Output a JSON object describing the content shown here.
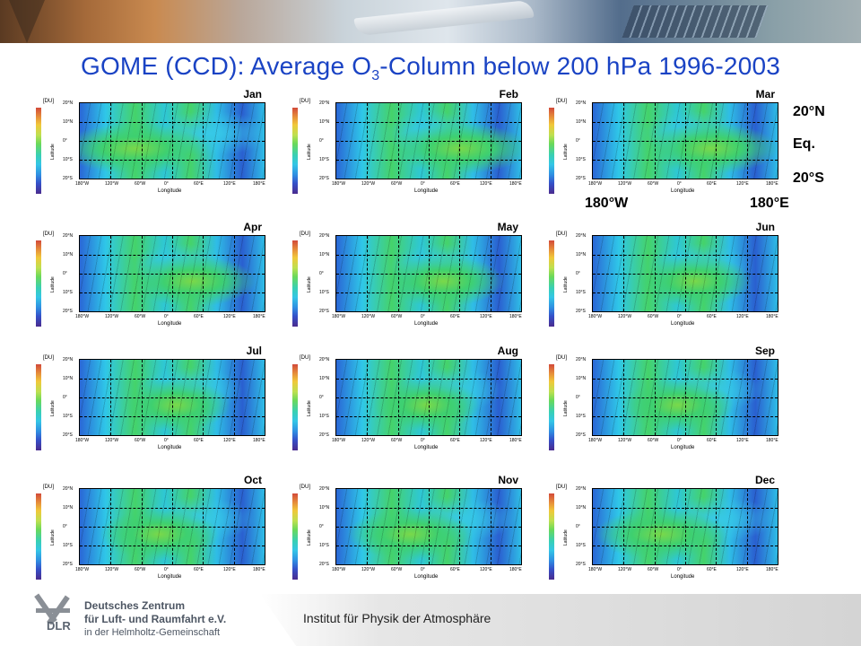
{
  "header": {
    "title_pre": "GOME (CCD): Average O",
    "title_sub": "3",
    "title_post": "-Column below 200 hPa 1996-2003"
  },
  "panels": [
    {
      "month": "Jan"
    },
    {
      "month": "Feb"
    },
    {
      "month": "Mar"
    },
    {
      "month": "Apr"
    },
    {
      "month": "May"
    },
    {
      "month": "Jun"
    },
    {
      "month": "Jul"
    },
    {
      "month": "Aug"
    },
    {
      "month": "Sep"
    },
    {
      "month": "Oct"
    },
    {
      "month": "Nov"
    },
    {
      "month": "Dec"
    }
  ],
  "axes": {
    "unit_label": "[DU]",
    "y_axis_name": "Latitude",
    "x_axis_name": "Longitude",
    "y_ticks": [
      "20°N",
      "10°N",
      "0°",
      "10°S",
      "20°S"
    ],
    "x_ticks": [
      "180°W",
      "120°W",
      "60°W",
      "0°",
      "60°E",
      "120°E",
      "180°E"
    ]
  },
  "annotations": {
    "north": "20°N",
    "equator": "Eq.",
    "south": "20°S",
    "west": "180°W",
    "east": "180°E"
  },
  "footer": {
    "org_line1": "Deutsches Zentrum",
    "org_line2": "für Luft- und Raumfahrt e.V.",
    "org_line3": "in der Helmholtz-Gemeinschaft",
    "logo_text": "DLR",
    "institute": "Institut für Physik der Atmosphäre"
  },
  "colors": {
    "title": "#1a43c4",
    "footer_text": "#4d5663"
  }
}
